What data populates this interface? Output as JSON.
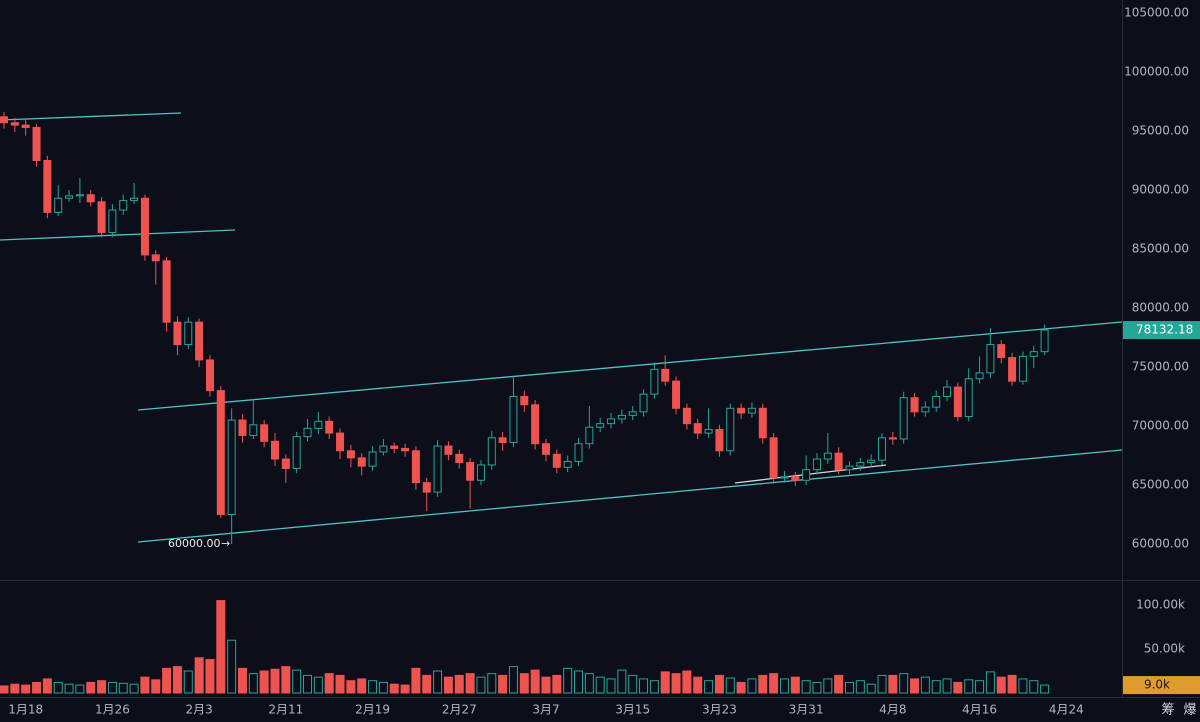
{
  "chart_data": {
    "type": "candlestick",
    "up_color": "#26a69a",
    "down_color": "#ef5350",
    "xlim": [
      -0.37,
      103.14
    ],
    "xticks": [
      {
        "value": 2,
        "label": "1月18"
      },
      {
        "value": 10,
        "label": "1月26"
      },
      {
        "value": 18,
        "label": "2月3"
      },
      {
        "value": 26,
        "label": "2月11"
      },
      {
        "value": 34,
        "label": "2月19"
      },
      {
        "value": 42,
        "label": "2月27"
      },
      {
        "value": 50,
        "label": "3月7"
      },
      {
        "value": 58,
        "label": "3月15"
      },
      {
        "value": 66,
        "label": "3月23"
      },
      {
        "value": 74,
        "label": "3月31"
      },
      {
        "value": 82,
        "label": "4月8"
      },
      {
        "value": 90,
        "label": "4月16"
      },
      {
        "value": 98,
        "label": "4月24"
      }
    ],
    "ylim": [
      56950,
      106100
    ],
    "yticks": [
      {
        "value": 60000,
        "label": "60000.00"
      },
      {
        "value": 65000,
        "label": "65000.00"
      },
      {
        "value": 70000,
        "label": "70000.00"
      },
      {
        "value": 75000,
        "label": "75000.00"
      },
      {
        "value": 80000,
        "label": "80000.00"
      },
      {
        "value": 85000,
        "label": "85000.00"
      },
      {
        "value": 90000,
        "label": "90000.00"
      },
      {
        "value": 95000,
        "label": "95000.00"
      },
      {
        "value": 100000,
        "label": "100000.00"
      },
      {
        "value": 105000,
        "label": "105000.00"
      }
    ],
    "open": [
      96200,
      95700,
      95500,
      95300,
      92500,
      88100,
      89300,
      89500,
      89600,
      89000,
      86400,
      88300,
      89100,
      89300,
      84500,
      84000,
      78800,
      76900,
      78800,
      75600,
      73000,
      62500,
      70500,
      69200,
      70100,
      68700,
      67200,
      66400,
      69100,
      69800,
      70400,
      69400,
      67900,
      67300,
      66600,
      67800,
      68300,
      68100,
      67900,
      65200,
      64400,
      68300,
      67600,
      66900,
      65400,
      66700,
      69000,
      68600,
      72500,
      71800,
      68500,
      67600,
      66500,
      67000,
      68500,
      69900,
      70200,
      70600,
      70900,
      71200,
      72700,
      74800,
      73800,
      71500,
      70200,
      69400,
      69700,
      67900,
      71500,
      71100,
      71500,
      69000,
      65600,
      65700,
      65400,
      66300,
      67200,
      67700,
      66300,
      66600,
      66900,
      67100,
      69000,
      68900,
      72400,
      71200,
      71600,
      72500,
      73300,
      70800,
      74000,
      74500,
      76900,
      75800,
      73800,
      75900,
      76300
    ],
    "high": [
      96600,
      96100,
      96000,
      95600,
      92900,
      90400,
      90000,
      91000,
      90000,
      89400,
      88800,
      89600,
      90600,
      89600,
      84900,
      84300,
      79300,
      79200,
      79100,
      76000,
      73400,
      71500,
      71000,
      72300,
      70500,
      69400,
      67600,
      69500,
      70600,
      71200,
      70800,
      69800,
      68400,
      67700,
      68300,
      68900,
      68600,
      68500,
      68300,
      65600,
      68800,
      68700,
      68000,
      67300,
      67100,
      69600,
      69500,
      74200,
      73000,
      72200,
      68900,
      68000,
      67500,
      69000,
      71700,
      70700,
      71100,
      71400,
      71700,
      73100,
      75400,
      76000,
      74200,
      71900,
      70600,
      71500,
      70100,
      71900,
      71900,
      72000,
      71900,
      69400,
      66200,
      66100,
      67500,
      67700,
      69400,
      68200,
      67000,
      67300,
      67600,
      69400,
      69500,
      72900,
      72800,
      72100,
      73000,
      73900,
      73700,
      74900,
      75900,
      78300,
      77300,
      76200,
      76300,
      76800,
      78600
    ],
    "low": [
      95200,
      94900,
      94600,
      92000,
      87600,
      87800,
      89000,
      88900,
      88600,
      86000,
      86000,
      87900,
      88800,
      84000,
      82000,
      78000,
      76000,
      76500,
      75000,
      72500,
      62200,
      60000,
      68600,
      68900,
      68200,
      66600,
      65200,
      66000,
      68700,
      69300,
      68900,
      67200,
      66500,
      65800,
      66200,
      67500,
      67700,
      67400,
      64600,
      62800,
      64000,
      67100,
      66400,
      63000,
      65000,
      66300,
      67900,
      68200,
      71200,
      68000,
      67000,
      66000,
      66100,
      66600,
      68100,
      69500,
      69800,
      70200,
      70500,
      70800,
      72300,
      73400,
      71000,
      69700,
      68900,
      69000,
      67400,
      67500,
      70600,
      70700,
      68500,
      65100,
      65200,
      64900,
      65000,
      65900,
      66800,
      65900,
      65900,
      66200,
      66500,
      66700,
      68400,
      68500,
      70800,
      70800,
      71200,
      72100,
      70400,
      70400,
      73600,
      74100,
      75300,
      73400,
      73500,
      74900,
      76000
    ],
    "close": [
      95700,
      95500,
      95300,
      92500,
      88100,
      89300,
      89500,
      89600,
      89000,
      86400,
      88300,
      89100,
      89300,
      84500,
      84000,
      78800,
      76900,
      78800,
      75600,
      73000,
      62500,
      70500,
      69200,
      70100,
      68700,
      67200,
      66400,
      69100,
      69800,
      70400,
      69400,
      67900,
      67300,
      66600,
      67800,
      68300,
      68100,
      67900,
      65200,
      64400,
      68300,
      67600,
      66900,
      65400,
      66700,
      69000,
      68600,
      72500,
      71800,
      68500,
      67600,
      66500,
      67000,
      68500,
      69900,
      70200,
      70600,
      70900,
      71200,
      72700,
      74800,
      73800,
      71500,
      70200,
      69400,
      69700,
      67900,
      71500,
      71100,
      71500,
      69000,
      65600,
      65700,
      65400,
      66300,
      67200,
      67700,
      66300,
      66600,
      66900,
      67100,
      69000,
      68900,
      72400,
      71200,
      71600,
      72500,
      73300,
      70800,
      74000,
      74500,
      76900,
      75800,
      73800,
      75900,
      76300,
      78132.18
    ],
    "annotation": "60000.00",
    "volume": {
      "ylim": [
        -4545,
        126136
      ],
      "yticks": [
        {
          "value": 50000,
          "label": "50.00k"
        },
        {
          "value": 100000,
          "label": "100.00k"
        }
      ],
      "values": [
        8000,
        10000,
        9000,
        12000,
        16000,
        12000,
        10000,
        9000,
        12000,
        14000,
        12000,
        11000,
        10000,
        18000,
        15000,
        28000,
        30000,
        25000,
        40000,
        38000,
        105000,
        60000,
        28000,
        22000,
        25000,
        27000,
        30000,
        26000,
        20000,
        18000,
        22000,
        20000,
        14000,
        16000,
        14000,
        12000,
        10000,
        9000,
        28000,
        20000,
        25000,
        18000,
        20000,
        22000,
        18000,
        22000,
        20000,
        30000,
        22000,
        26000,
        18000,
        20000,
        28000,
        25000,
        22000,
        18000,
        16000,
        26000,
        20000,
        16000,
        14000,
        24000,
        22000,
        25000,
        18000,
        14000,
        20000,
        17000,
        12000,
        16000,
        20000,
        22000,
        16000,
        18000,
        14000,
        12000,
        16000,
        20000,
        12000,
        14000,
        10000,
        20000,
        20000,
        22000,
        16000,
        18000,
        14000,
        16000,
        12000,
        15000,
        14000,
        24000,
        18000,
        20000,
        16000,
        14000,
        9000
      ],
      "last_label": "9.0k"
    },
    "tools": [
      "筹",
      "爆"
    ]
  }
}
